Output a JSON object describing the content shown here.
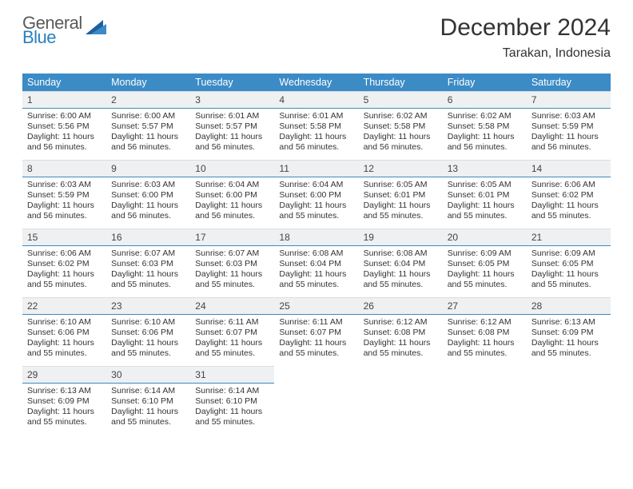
{
  "brand": {
    "general": "General",
    "blue": "Blue"
  },
  "title": "December 2024",
  "location": "Tarakan, Indonesia",
  "colors": {
    "header_bg": "#3b8bc6",
    "daynum_bg": "#eef0f1",
    "rule": "#3b8bc6"
  },
  "fonts": {
    "title_size": 30,
    "location_size": 16,
    "header_size": 12.5,
    "body_size": 10.5
  },
  "calendar": {
    "type": "table",
    "columns": [
      "Sunday",
      "Monday",
      "Tuesday",
      "Wednesday",
      "Thursday",
      "Friday",
      "Saturday"
    ],
    "weeks": [
      [
        {
          "n": "1",
          "sr": "6:00 AM",
          "ss": "5:56 PM",
          "dl": "11 hours and 56 minutes."
        },
        {
          "n": "2",
          "sr": "6:00 AM",
          "ss": "5:57 PM",
          "dl": "11 hours and 56 minutes."
        },
        {
          "n": "3",
          "sr": "6:01 AM",
          "ss": "5:57 PM",
          "dl": "11 hours and 56 minutes."
        },
        {
          "n": "4",
          "sr": "6:01 AM",
          "ss": "5:58 PM",
          "dl": "11 hours and 56 minutes."
        },
        {
          "n": "5",
          "sr": "6:02 AM",
          "ss": "5:58 PM",
          "dl": "11 hours and 56 minutes."
        },
        {
          "n": "6",
          "sr": "6:02 AM",
          "ss": "5:58 PM",
          "dl": "11 hours and 56 minutes."
        },
        {
          "n": "7",
          "sr": "6:03 AM",
          "ss": "5:59 PM",
          "dl": "11 hours and 56 minutes."
        }
      ],
      [
        {
          "n": "8",
          "sr": "6:03 AM",
          "ss": "5:59 PM",
          "dl": "11 hours and 56 minutes."
        },
        {
          "n": "9",
          "sr": "6:03 AM",
          "ss": "6:00 PM",
          "dl": "11 hours and 56 minutes."
        },
        {
          "n": "10",
          "sr": "6:04 AM",
          "ss": "6:00 PM",
          "dl": "11 hours and 56 minutes."
        },
        {
          "n": "11",
          "sr": "6:04 AM",
          "ss": "6:00 PM",
          "dl": "11 hours and 55 minutes."
        },
        {
          "n": "12",
          "sr": "6:05 AM",
          "ss": "6:01 PM",
          "dl": "11 hours and 55 minutes."
        },
        {
          "n": "13",
          "sr": "6:05 AM",
          "ss": "6:01 PM",
          "dl": "11 hours and 55 minutes."
        },
        {
          "n": "14",
          "sr": "6:06 AM",
          "ss": "6:02 PM",
          "dl": "11 hours and 55 minutes."
        }
      ],
      [
        {
          "n": "15",
          "sr": "6:06 AM",
          "ss": "6:02 PM",
          "dl": "11 hours and 55 minutes."
        },
        {
          "n": "16",
          "sr": "6:07 AM",
          "ss": "6:03 PM",
          "dl": "11 hours and 55 minutes."
        },
        {
          "n": "17",
          "sr": "6:07 AM",
          "ss": "6:03 PM",
          "dl": "11 hours and 55 minutes."
        },
        {
          "n": "18",
          "sr": "6:08 AM",
          "ss": "6:04 PM",
          "dl": "11 hours and 55 minutes."
        },
        {
          "n": "19",
          "sr": "6:08 AM",
          "ss": "6:04 PM",
          "dl": "11 hours and 55 minutes."
        },
        {
          "n": "20",
          "sr": "6:09 AM",
          "ss": "6:05 PM",
          "dl": "11 hours and 55 minutes."
        },
        {
          "n": "21",
          "sr": "6:09 AM",
          "ss": "6:05 PM",
          "dl": "11 hours and 55 minutes."
        }
      ],
      [
        {
          "n": "22",
          "sr": "6:10 AM",
          "ss": "6:06 PM",
          "dl": "11 hours and 55 minutes."
        },
        {
          "n": "23",
          "sr": "6:10 AM",
          "ss": "6:06 PM",
          "dl": "11 hours and 55 minutes."
        },
        {
          "n": "24",
          "sr": "6:11 AM",
          "ss": "6:07 PM",
          "dl": "11 hours and 55 minutes."
        },
        {
          "n": "25",
          "sr": "6:11 AM",
          "ss": "6:07 PM",
          "dl": "11 hours and 55 minutes."
        },
        {
          "n": "26",
          "sr": "6:12 AM",
          "ss": "6:08 PM",
          "dl": "11 hours and 55 minutes."
        },
        {
          "n": "27",
          "sr": "6:12 AM",
          "ss": "6:08 PM",
          "dl": "11 hours and 55 minutes."
        },
        {
          "n": "28",
          "sr": "6:13 AM",
          "ss": "6:09 PM",
          "dl": "11 hours and 55 minutes."
        }
      ],
      [
        {
          "n": "29",
          "sr": "6:13 AM",
          "ss": "6:09 PM",
          "dl": "11 hours and 55 minutes."
        },
        {
          "n": "30",
          "sr": "6:14 AM",
          "ss": "6:10 PM",
          "dl": "11 hours and 55 minutes."
        },
        {
          "n": "31",
          "sr": "6:14 AM",
          "ss": "6:10 PM",
          "dl": "11 hours and 55 minutes."
        },
        null,
        null,
        null,
        null
      ]
    ],
    "labels": {
      "sunrise": "Sunrise:",
      "sunset": "Sunset:",
      "daylight": "Daylight:"
    }
  }
}
